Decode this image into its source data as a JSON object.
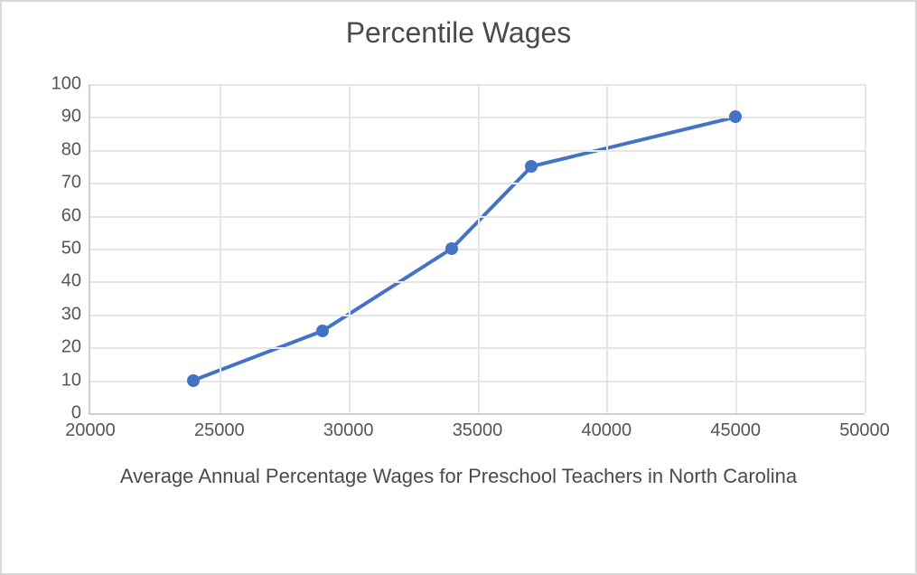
{
  "chart": {
    "type": "line",
    "title": "Percentile Wages",
    "title_fontsize": 32,
    "title_color": "#4a4a4a",
    "x_axis_title": "Average Annual Percentage Wages for Preschool Teachers in North Carolina",
    "x_axis_title_fontsize": 22,
    "background_color": "#ffffff",
    "border_color": "#d8d8d8",
    "grid_color": "#e6e6e6",
    "axis_line_color": "#cfcfcf",
    "tick_label_color": "#555555",
    "tick_label_fontsize": 20,
    "xlim": [
      20000,
      50000
    ],
    "xtick_step": 5000,
    "xticks": [
      20000,
      25000,
      30000,
      35000,
      40000,
      45000,
      50000
    ],
    "ylim": [
      0,
      100
    ],
    "ytick_step": 10,
    "yticks": [
      0,
      10,
      20,
      30,
      40,
      50,
      60,
      70,
      80,
      90,
      100
    ],
    "series": {
      "line_color": "#4472c4",
      "line_width": 4,
      "marker_color": "#4472c4",
      "marker_size": 14,
      "x": [
        24000,
        29000,
        34000,
        37100,
        45000
      ],
      "y": [
        10,
        25,
        50,
        75,
        90
      ]
    }
  }
}
